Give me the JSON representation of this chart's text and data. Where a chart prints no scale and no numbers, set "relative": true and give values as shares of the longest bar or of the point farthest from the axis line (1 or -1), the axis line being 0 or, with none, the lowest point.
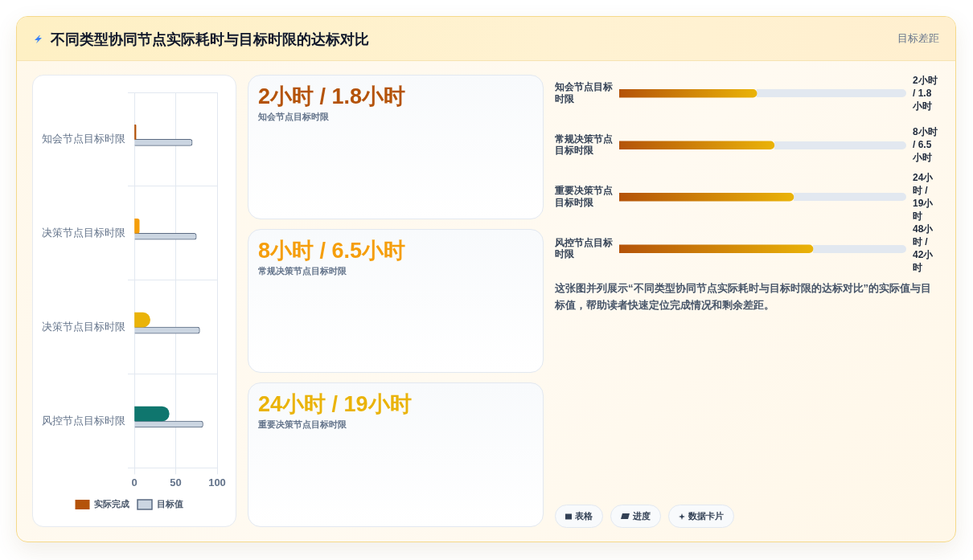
{
  "chart_data": [
    {
      "type": "other",
      "title": "不同类型协同节点实际耗时与目标时限的达标对比",
      "subtitle": "目标差距"
    },
    {
      "type": "bar",
      "orientation": "horizontal",
      "categories": [
        "知会节点目标时限",
        "决策节点目标时限",
        "决策节点目标时限",
        "风控节点目标时限"
      ],
      "series": [
        {
          "name": "实际完成",
          "colors": [
            "#b45309",
            "#f59e0b",
            "#eab308",
            "#0f766e"
          ],
          "values": [
            2,
            6,
            19,
            42
          ]
        },
        {
          "name": "目标值",
          "color": "#cbd5e1",
          "values": [
            70,
            75,
            79,
            83
          ]
        }
      ],
      "xlim": [
        0,
        100
      ],
      "xticks": [
        0,
        50,
        100
      ],
      "grid": true,
      "legend": "bottom"
    },
    {
      "type": "other",
      "categories": [
        "知会节点目标时限",
        "常规决策节点目标时限",
        "重要决策节点目标时限"
      ],
      "value_labels": [
        "2小时 / 1.8小时",
        "8小时 / 6.5小时",
        "24小时 / 19小时"
      ]
    },
    {
      "type": "bar",
      "orientation": "horizontal",
      "relative": true,
      "tick_labels": "y",
      "categories": [
        "知会节点目标时限",
        "常规决策节点目标时限",
        "重要决策节点目标时限",
        "风控节点目标时限"
      ],
      "series": [
        {
          "color": "#b45309",
          "values": [
            0.71,
            0.8,
            0.9,
            1
          ]
        }
      ],
      "annotations": [
        "2小时 / 1.8小时",
        "8小时 / 6.5小时",
        "24小时 / 19小时",
        "48小时 / 42小时",
        "这张图并列展示“不同类型协同节点实际耗时与目标时限的达标对比”的实际值与目标值，帮助读者快速定位完成情况和剩余差距。"
      ]
    },
    {
      "type": "other",
      "annotations": [
        "表格",
        "进度",
        "数据卡片"
      ]
    }
  ]
}
